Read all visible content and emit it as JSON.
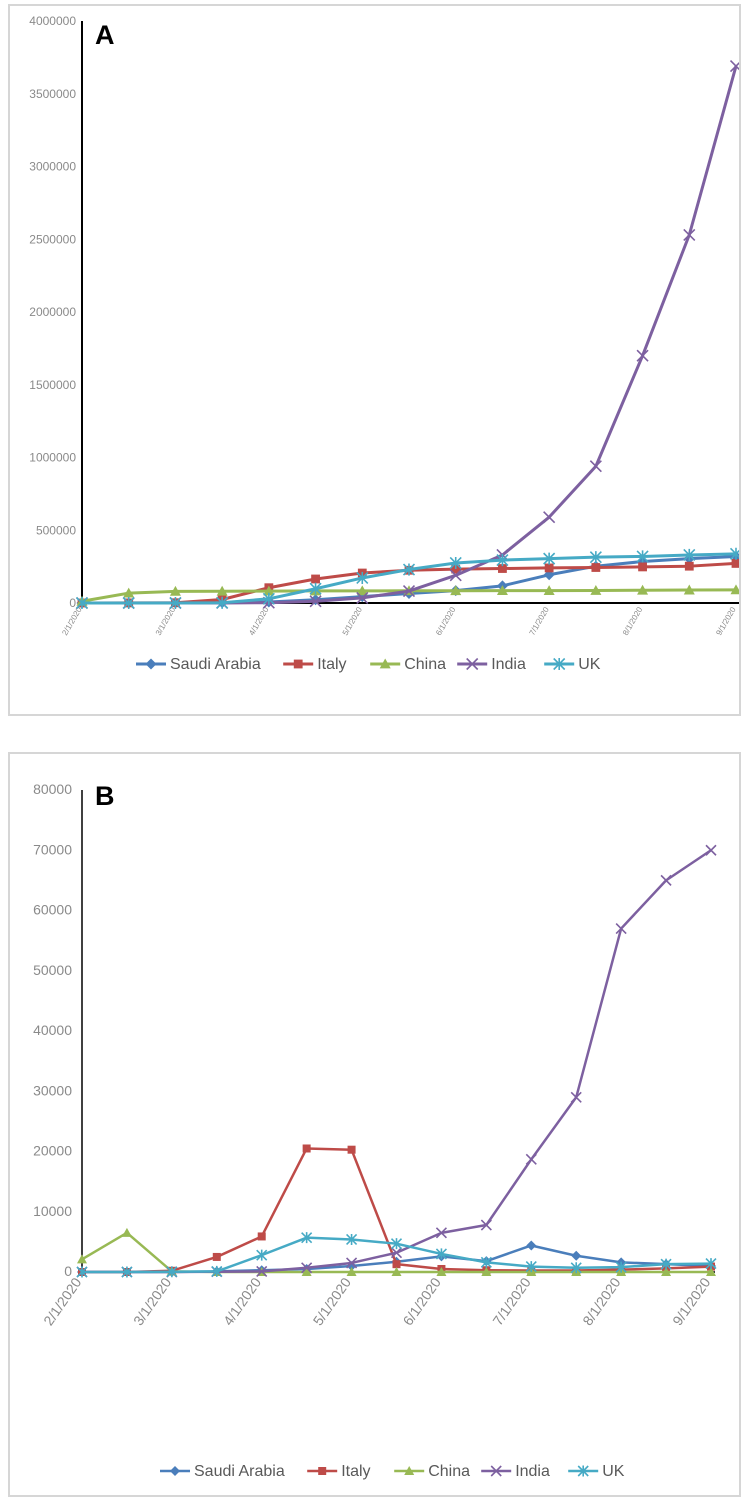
{
  "chart_data": [
    {
      "type": "line",
      "panel_label": "A",
      "categories": [
        "2/1/2020",
        "2/15/2020",
        "3/1/2020",
        "3/15/2020",
        "4/1/2020",
        "4/15/2020",
        "5/1/2020",
        "5/15/2020",
        "6/1/2020",
        "6/15/2020",
        "7/1/2020",
        "7/15/2020",
        "8/1/2020",
        "8/15/2020",
        "9/1/2020"
      ],
      "x_tick_labels": [
        "2/1/2020",
        "",
        "3/1/2020",
        "",
        "4/1/2020",
        "",
        "5/1/2020",
        "",
        "6/1/2020",
        "",
        "7/1/2020",
        "",
        "8/1/2020",
        "",
        "9/1/2020"
      ],
      "y_ticks": [
        "0",
        "500000",
        "1000000",
        "1500000",
        "2000000",
        "2500000",
        "3000000",
        "3500000",
        "4000000"
      ],
      "ylim": [
        0,
        4000000
      ],
      "grid": false,
      "legend_position": "bottom",
      "series": [
        {
          "name": "Saudi Arabia",
          "color": "#4a7ebb",
          "marker": "diamond",
          "values": [
            0,
            0,
            1000,
            3000,
            7000,
            22000,
            44000,
            65000,
            85000,
            118000,
            194000,
            253000,
            285000,
            305000,
            320000
          ]
        },
        {
          "name": "Italy",
          "color": "#be4b48",
          "marker": "square",
          "values": [
            3,
            650,
            1700,
            24000,
            105000,
            165000,
            206000,
            225000,
            233000,
            237000,
            241000,
            244000,
            248000,
            253000,
            272000
          ]
        },
        {
          "name": "China",
          "color": "#98b954",
          "marker": "triangle",
          "values": [
            11800,
            68000,
            80000,
            81000,
            82000,
            83000,
            83500,
            84000,
            84500,
            84800,
            85000,
            86000,
            88000,
            89000,
            90000
          ]
        },
        {
          "name": "India",
          "color": "#7d60a0",
          "marker": "x",
          "values": [
            1,
            3,
            3,
            110,
            1900,
            12000,
            35000,
            82000,
            190000,
            330000,
            590000,
            940000,
            1700000,
            2530000,
            3690000
          ]
        },
        {
          "name": "UK",
          "color": "#46aac5",
          "marker": "asterisk",
          "values": [
            2,
            9,
            36,
            1400,
            29000,
            98000,
            172000,
            230000,
            275000,
            295000,
            305000,
            315000,
            320000,
            330000,
            338000
          ]
        }
      ]
    },
    {
      "type": "line",
      "panel_label": "B",
      "categories": [
        "2/1/2020",
        "2/15/2020",
        "3/1/2020",
        "3/15/2020",
        "4/1/2020",
        "4/15/2020",
        "5/1/2020",
        "5/15/2020",
        "6/1/2020",
        "6/15/2020",
        "7/1/2020",
        "7/15/2020",
        "8/1/2020",
        "8/15/2020",
        "9/1/2020"
      ],
      "x_tick_labels": [
        "2/1/2020",
        "",
        "3/1/2020",
        "",
        "4/1/2020",
        "",
        "5/1/2020",
        "",
        "6/1/2020",
        "",
        "7/1/2020",
        "",
        "8/1/2020",
        "",
        "9/1/2020"
      ],
      "y_ticks": [
        "0",
        "10000",
        "20000",
        "30000",
        "40000",
        "50000",
        "60000",
        "70000",
        "80000"
      ],
      "ylim": [
        0,
        80000
      ],
      "grid": false,
      "legend_position": "bottom",
      "series": [
        {
          "name": "Saudi Arabia",
          "color": "#4a7ebb",
          "marker": "diamond",
          "values": [
            0,
            0,
            0,
            100,
            300,
            500,
            1000,
            1700,
            2600,
            1800,
            4400,
            2700,
            1600,
            1300,
            1000
          ]
        },
        {
          "name": "Italy",
          "color": "#be4b48",
          "marker": "square",
          "values": [
            0,
            0,
            200,
            2500,
            5900,
            20500,
            20300,
            1300,
            500,
            300,
            250,
            250,
            400,
            600,
            900
          ]
        },
        {
          "name": "China",
          "color": "#98b954",
          "marker": "triangle",
          "values": [
            2100,
            6500,
            100,
            0,
            0,
            0,
            0,
            0,
            0,
            0,
            0,
            0,
            0,
            0,
            0
          ]
        },
        {
          "name": "India",
          "color": "#7d60a0",
          "marker": "x",
          "values": [
            0,
            0,
            0,
            50,
            100,
            700,
            1500,
            3200,
            6500,
            7800,
            18700,
            29000,
            57000,
            65000,
            70000
          ]
        },
        {
          "name": "UK",
          "color": "#46aac5",
          "marker": "asterisk",
          "values": [
            0,
            0,
            50,
            100,
            2800,
            5700,
            5400,
            4700,
            3000,
            1600,
            900,
            700,
            800,
            1300,
            1400
          ]
        }
      ]
    }
  ]
}
